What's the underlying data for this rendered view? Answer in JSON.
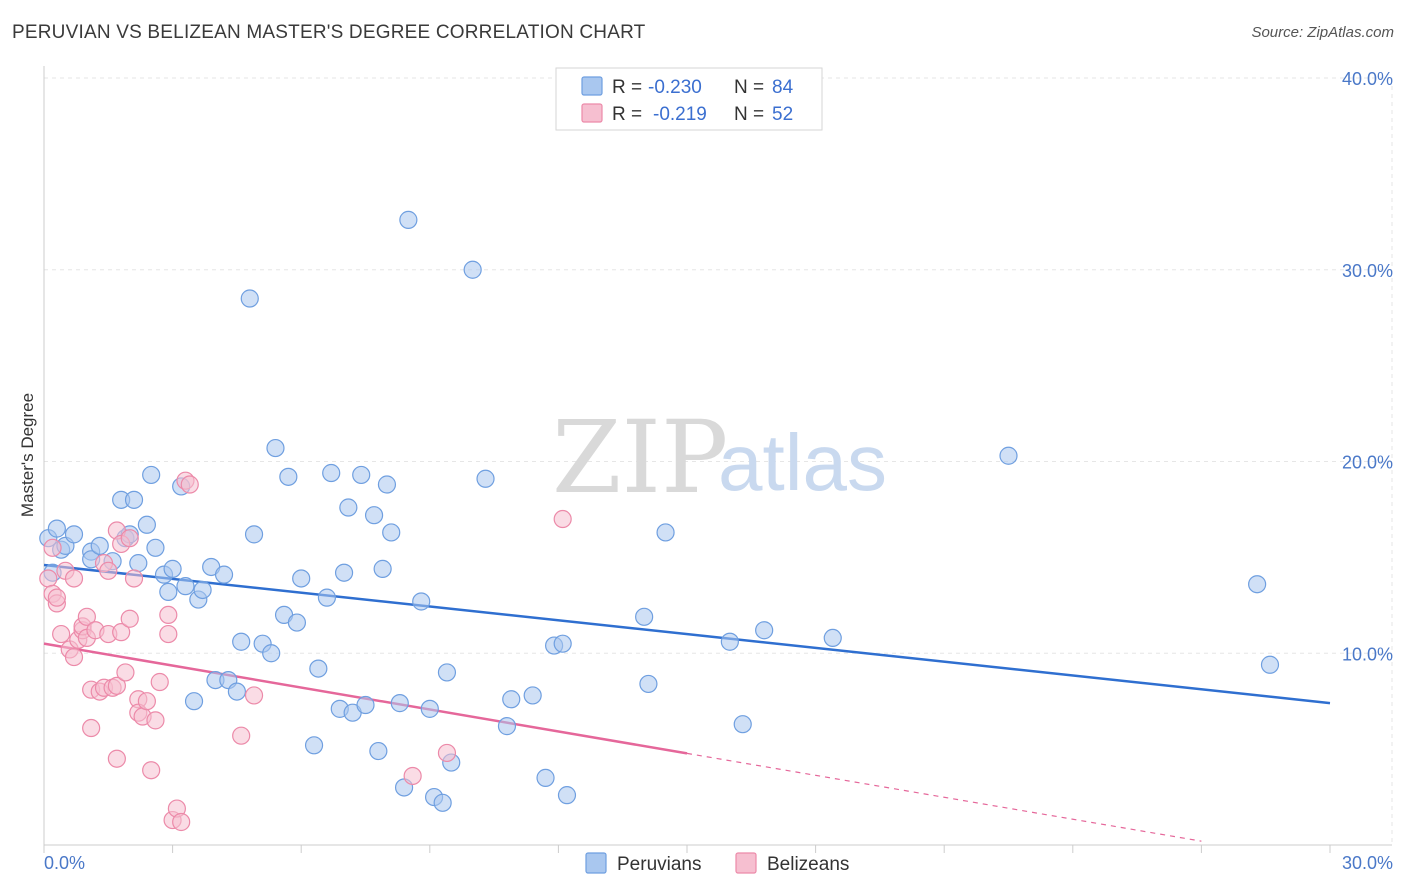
{
  "header": {
    "title": "PERUVIAN VS BELIZEAN MASTER'S DEGREE CORRELATION CHART",
    "source": "Source: ZipAtlas.com"
  },
  "watermark": {
    "zip": "ZIP",
    "atlas": "atlas"
  },
  "colors": {
    "peruvians_fill": "#a9c7ef",
    "peruvians_stroke": "#6f9fe0",
    "peruvians_line": "#2f6fd0",
    "belizeans_fill": "#f6bfd0",
    "belizeans_stroke": "#ec8aa9",
    "belizeans_line": "#e5679a",
    "grid": "#e6e6e6"
  },
  "legend": {
    "r_label": "R =",
    "n_label": "N =",
    "rows": [
      {
        "r": "-0.230",
        "n": "84"
      },
      {
        "r": "-0.219",
        "n": "52"
      }
    ]
  },
  "bottom_legend": [
    "Peruvians",
    "Belizeans"
  ],
  "chart_data": {
    "type": "scatter",
    "title": "PERUVIAN VS BELIZEAN MASTER'S DEGREE CORRELATION CHART",
    "xlabel": "",
    "ylabel": "Master's Degree",
    "xlim": [
      0,
      30
    ],
    "ylim": [
      0,
      40
    ],
    "x_tick_labels": [
      "0.0%",
      "30.0%"
    ],
    "y_ticks": [
      10,
      20,
      30,
      40
    ],
    "y_tick_labels": [
      "10.0%",
      "20.0%",
      "30.0%",
      "40.0%"
    ],
    "grid": true,
    "legend_position": "top-center",
    "series": [
      {
        "name": "Peruvians",
        "R": -0.23,
        "N": 84,
        "trend": {
          "x": [
            0,
            30
          ],
          "y": [
            14.6,
            7.4
          ],
          "dashed_from": null
        },
        "points": [
          [
            0.1,
            16.0
          ],
          [
            0.2,
            14.2
          ],
          [
            0.3,
            16.5
          ],
          [
            0.4,
            15.4
          ],
          [
            0.5,
            15.6
          ],
          [
            0.7,
            16.2
          ],
          [
            1.1,
            15.3
          ],
          [
            1.1,
            14.9
          ],
          [
            1.3,
            15.6
          ],
          [
            1.6,
            14.8
          ],
          [
            1.8,
            18.0
          ],
          [
            1.9,
            16.0
          ],
          [
            2.0,
            16.2
          ],
          [
            2.1,
            18.0
          ],
          [
            2.2,
            14.7
          ],
          [
            2.4,
            16.7
          ],
          [
            2.5,
            19.3
          ],
          [
            2.6,
            15.5
          ],
          [
            2.8,
            14.1
          ],
          [
            2.9,
            13.2
          ],
          [
            3.0,
            14.4
          ],
          [
            3.2,
            18.7
          ],
          [
            3.3,
            13.5
          ],
          [
            3.5,
            7.5
          ],
          [
            3.6,
            12.8
          ],
          [
            3.7,
            13.3
          ],
          [
            3.9,
            14.5
          ],
          [
            4.0,
            8.6
          ],
          [
            4.2,
            14.1
          ],
          [
            4.3,
            8.6
          ],
          [
            4.5,
            8.0
          ],
          [
            4.6,
            10.6
          ],
          [
            4.8,
            28.5
          ],
          [
            4.9,
            16.2
          ],
          [
            5.1,
            10.5
          ],
          [
            5.3,
            10.0
          ],
          [
            5.4,
            20.7
          ],
          [
            5.6,
            12.0
          ],
          [
            5.7,
            19.2
          ],
          [
            5.9,
            11.6
          ],
          [
            6.0,
            13.9
          ],
          [
            6.3,
            5.2
          ],
          [
            6.4,
            9.2
          ],
          [
            6.6,
            12.9
          ],
          [
            6.7,
            19.4
          ],
          [
            6.9,
            7.1
          ],
          [
            7.0,
            14.2
          ],
          [
            7.1,
            17.6
          ],
          [
            7.2,
            6.9
          ],
          [
            7.4,
            19.3
          ],
          [
            7.5,
            7.3
          ],
          [
            7.7,
            17.2
          ],
          [
            7.8,
            4.9
          ],
          [
            7.9,
            14.4
          ],
          [
            8.0,
            18.8
          ],
          [
            8.1,
            16.3
          ],
          [
            8.3,
            7.4
          ],
          [
            8.4,
            3.0
          ],
          [
            8.5,
            32.6
          ],
          [
            8.8,
            12.7
          ],
          [
            9.0,
            7.1
          ],
          [
            9.1,
            2.5
          ],
          [
            9.3,
            2.2
          ],
          [
            9.4,
            9.0
          ],
          [
            9.5,
            4.3
          ],
          [
            10.0,
            30.0
          ],
          [
            10.3,
            19.1
          ],
          [
            10.8,
            6.2
          ],
          [
            10.9,
            7.6
          ],
          [
            11.4,
            7.8
          ],
          [
            11.7,
            3.5
          ],
          [
            11.9,
            10.4
          ],
          [
            12.1,
            10.5
          ],
          [
            12.2,
            2.6
          ],
          [
            14.0,
            11.9
          ],
          [
            14.1,
            8.4
          ],
          [
            14.5,
            16.3
          ],
          [
            16.0,
            10.6
          ],
          [
            16.3,
            6.3
          ],
          [
            16.8,
            11.2
          ],
          [
            22.5,
            20.3
          ],
          [
            28.3,
            13.6
          ],
          [
            28.6,
            9.4
          ],
          [
            18.4,
            10.8
          ]
        ]
      },
      {
        "name": "Belizeans",
        "R": -0.219,
        "N": 52,
        "trend": {
          "x": [
            0,
            27
          ],
          "y": [
            10.5,
            0.2
          ],
          "dashed_from": 15.0
        },
        "points": [
          [
            0.1,
            13.9
          ],
          [
            0.2,
            13.1
          ],
          [
            0.3,
            12.6
          ],
          [
            0.3,
            12.9
          ],
          [
            0.4,
            11.0
          ],
          [
            0.5,
            14.3
          ],
          [
            0.6,
            10.2
          ],
          [
            0.7,
            9.8
          ],
          [
            0.7,
            13.9
          ],
          [
            0.8,
            10.7
          ],
          [
            0.9,
            11.2
          ],
          [
            0.9,
            11.4
          ],
          [
            1.0,
            11.9
          ],
          [
            1.0,
            10.8
          ],
          [
            1.1,
            8.1
          ],
          [
            1.1,
            6.1
          ],
          [
            1.2,
            11.2
          ],
          [
            1.3,
            8.0
          ],
          [
            1.4,
            14.7
          ],
          [
            1.4,
            8.2
          ],
          [
            1.5,
            11.0
          ],
          [
            1.5,
            14.3
          ],
          [
            1.6,
            8.2
          ],
          [
            1.7,
            4.5
          ],
          [
            1.7,
            16.4
          ],
          [
            1.7,
            8.3
          ],
          [
            1.8,
            11.1
          ],
          [
            1.8,
            15.7
          ],
          [
            1.9,
            9.0
          ],
          [
            2.0,
            11.8
          ],
          [
            2.1,
            13.9
          ],
          [
            2.2,
            7.6
          ],
          [
            2.2,
            6.9
          ],
          [
            2.3,
            6.7
          ],
          [
            2.4,
            7.5
          ],
          [
            2.5,
            3.9
          ],
          [
            2.6,
            6.5
          ],
          [
            2.7,
            8.5
          ],
          [
            2.9,
            11.0
          ],
          [
            2.9,
            12.0
          ],
          [
            3.0,
            1.3
          ],
          [
            3.1,
            1.9
          ],
          [
            3.2,
            1.2
          ],
          [
            3.3,
            19.0
          ],
          [
            3.4,
            18.8
          ],
          [
            4.6,
            5.7
          ],
          [
            4.9,
            7.8
          ],
          [
            8.6,
            3.6
          ],
          [
            9.4,
            4.8
          ],
          [
            12.1,
            17.0
          ],
          [
            2.0,
            16.0
          ],
          [
            0.2,
            15.5
          ]
        ]
      }
    ]
  }
}
